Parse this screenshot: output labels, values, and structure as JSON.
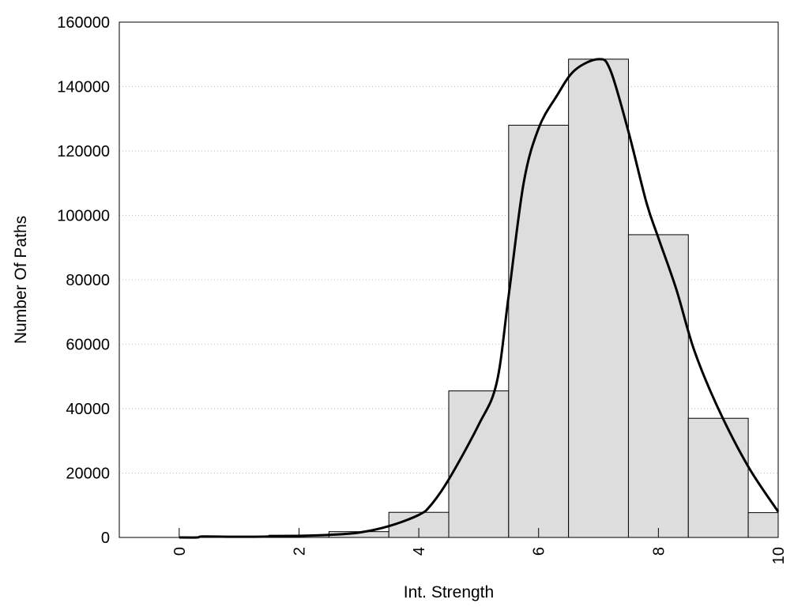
{
  "chart_data": {
    "type": "bar",
    "title": "",
    "xlabel": "Int. Strength",
    "ylabel": "Number Of Paths",
    "xlim": [
      -1,
      10
    ],
    "ylim": [
      0,
      160000
    ],
    "x_ticks": [
      0,
      2,
      4,
      6,
      8,
      10
    ],
    "x_tick_labels": [
      "0",
      "2",
      "4",
      "6",
      "8",
      "10"
    ],
    "y_ticks": [
      0,
      20000,
      40000,
      60000,
      80000,
      100000,
      120000,
      140000,
      160000
    ],
    "y_tick_labels": [
      "0",
      "20000",
      "40000",
      "60000",
      "80000",
      "100000",
      "120000",
      "140000",
      "160000"
    ],
    "grid": "horizontal dotted",
    "bar_width": 1,
    "bars": [
      {
        "x": 0,
        "value": 0
      },
      {
        "x": 1,
        "value": 300
      },
      {
        "x": 2,
        "value": 700
      },
      {
        "x": 3,
        "value": 1800
      },
      {
        "x": 4,
        "value": 7800
      },
      {
        "x": 5,
        "value": 45500
      },
      {
        "x": 6,
        "value": 128000
      },
      {
        "x": 7,
        "value": 148500
      },
      {
        "x": 8,
        "value": 94000
      },
      {
        "x": 9,
        "value": 37000
      },
      {
        "x": 10,
        "value": 7700
      }
    ],
    "curve": {
      "type": "line",
      "points": [
        [
          0,
          0
        ],
        [
          0.3,
          0
        ],
        [
          0.4,
          300
        ],
        [
          1,
          200
        ],
        [
          1.5,
          300
        ],
        [
          2,
          500
        ],
        [
          2.5,
          800
        ],
        [
          3,
          1500
        ],
        [
          3.5,
          3500
        ],
        [
          4,
          7000
        ],
        [
          4.2,
          10000
        ],
        [
          4.5,
          18000
        ],
        [
          5,
          35000
        ],
        [
          5.3,
          48000
        ],
        [
          5.5,
          75000
        ],
        [
          5.75,
          110000
        ],
        [
          6,
          127000
        ],
        [
          6.3,
          137000
        ],
        [
          6.6,
          145000
        ],
        [
          7,
          148500
        ],
        [
          7.2,
          145000
        ],
        [
          7.5,
          126000
        ],
        [
          7.8,
          104000
        ],
        [
          8,
          93000
        ],
        [
          8.3,
          77000
        ],
        [
          8.6,
          58000
        ],
        [
          9,
          40000
        ],
        [
          9.5,
          22000
        ],
        [
          10,
          8000
        ]
      ]
    }
  },
  "colors": {
    "bar_fill": "#dddddd",
    "bar_stroke": "#000000",
    "line": "#000000",
    "grid": "#bbbbbb"
  }
}
